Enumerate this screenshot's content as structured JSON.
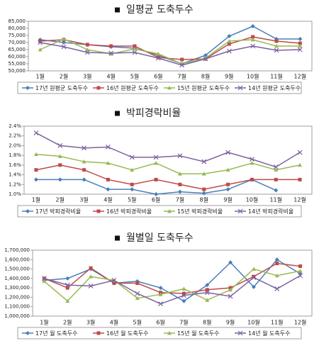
{
  "chart_data": [
    {
      "type": "line",
      "title": "일평균 도축두수",
      "categories": [
        "1월",
        "2월",
        "3월",
        "4월",
        "5월",
        "6월",
        "7월",
        "8월",
        "9월",
        "10월",
        "11월",
        "12월"
      ],
      "ylim": [
        50000,
        85000
      ],
      "yticks": [
        {
          "value": 50000,
          "label": "50,000"
        },
        {
          "value": 55000,
          "label": "55,000"
        },
        {
          "value": 60000,
          "label": "60,000"
        },
        {
          "value": 65000,
          "label": "65,000"
        },
        {
          "value": 70000,
          "label": "70,000"
        },
        {
          "value": 75000,
          "label": "75,000"
        },
        {
          "value": 80000,
          "label": "80,000"
        },
        {
          "value": 85000,
          "label": "85,000"
        }
      ],
      "series": [
        {
          "name": "17년 원평균 도축두수",
          "color": "#4a7ebb",
          "values": [
            72000,
            70000,
            68500,
            67000,
            66000,
            61000,
            55000,
            61000,
            74500,
            81500,
            72500,
            72500
          ]
        },
        {
          "name": "16년 원평균 도축두수",
          "color": "#be4b48",
          "values": [
            71000,
            72000,
            68500,
            67500,
            67500,
            59500,
            58000,
            58500,
            69000,
            74000,
            71000,
            69500
          ]
        },
        {
          "name": "15년 원평균 도축두수",
          "color": "#98b954",
          "values": [
            65000,
            72500,
            65000,
            62000,
            65500,
            62000,
            55000,
            59000,
            71000,
            72000,
            67500,
            67500
          ]
        },
        {
          "name": "14년 원평균 도축두수",
          "color": "#7d60a0",
          "values": [
            70000,
            67000,
            63000,
            62500,
            63000,
            59000,
            54000,
            58500,
            64000,
            67500,
            64500,
            65000
          ]
        }
      ]
    },
    {
      "type": "line",
      "title": "박피경락비율",
      "categories": [
        "1월",
        "2월",
        "3월",
        "4월",
        "5월",
        "6월",
        "7월",
        "8월",
        "9월",
        "10월",
        "11월",
        "12월"
      ],
      "ylim": [
        1.0,
        2.4
      ],
      "yticks": [
        {
          "value": 1.0,
          "label": "1.0%"
        },
        {
          "value": 1.2,
          "label": "1.2%"
        },
        {
          "value": 1.4,
          "label": "1.4%"
        },
        {
          "value": 1.6,
          "label": "1.6%"
        },
        {
          "value": 1.8,
          "label": "1.8%"
        },
        {
          "value": 2.0,
          "label": "2.0%"
        },
        {
          "value": 2.2,
          "label": "2.2%"
        },
        {
          "value": 2.4,
          "label": "2.4%"
        }
      ],
      "series": [
        {
          "name": "17년 박피경락비율",
          "color": "#4a7ebb",
          "values": [
            1.3,
            1.3,
            1.3,
            1.1,
            1.1,
            1.0,
            1.05,
            1.02,
            1.1,
            1.3,
            1.08,
            null
          ]
        },
        {
          "name": "16년 박피경락비율",
          "color": "#be4b48",
          "values": [
            1.5,
            1.6,
            1.5,
            1.3,
            1.2,
            1.3,
            1.2,
            1.1,
            1.2,
            1.3,
            1.3,
            1.3
          ]
        },
        {
          "name": "15년 박피경락비율",
          "color": "#98b954",
          "values": [
            1.82,
            1.78,
            1.67,
            1.64,
            1.5,
            1.64,
            1.42,
            1.42,
            1.5,
            1.64,
            1.5,
            1.6
          ]
        },
        {
          "name": "14년 박피경락비율",
          "color": "#7d60a0",
          "values": [
            2.26,
            2.0,
            1.95,
            1.97,
            1.76,
            1.76,
            1.79,
            1.67,
            1.86,
            1.72,
            1.56,
            1.86
          ]
        }
      ]
    },
    {
      "type": "line",
      "title": "월별일 도축두수",
      "categories": [
        "1월",
        "2월",
        "3월",
        "4월",
        "5월",
        "6월",
        "7월",
        "8월",
        "9월",
        "10월",
        "11월",
        "12월"
      ],
      "ylim": [
        1000000,
        1700000
      ],
      "yticks": [
        {
          "value": 1000000,
          "label": "1,000,000"
        },
        {
          "value": 1100000,
          "label": "1,100,000"
        },
        {
          "value": 1200000,
          "label": "1,200,000"
        },
        {
          "value": 1300000,
          "label": "1,300,000"
        },
        {
          "value": 1400000,
          "label": "1,400,000"
        },
        {
          "value": 1500000,
          "label": "1,500,000"
        },
        {
          "value": 1600000,
          "label": "1,600,000"
        },
        {
          "value": 1700000,
          "label": "1,700,000"
        }
      ],
      "series": [
        {
          "name": "17년 월 도축두수",
          "color": "#4a7ebb",
          "values": [
            1380000,
            1400000,
            1500000,
            1350000,
            1370000,
            1300000,
            1160000,
            1330000,
            1570000,
            1310000,
            1600000,
            1450000
          ]
        },
        {
          "name": "16년 월 도축두수",
          "color": "#be4b48",
          "values": [
            1400000,
            1300000,
            1510000,
            1350000,
            1350000,
            1250000,
            1240000,
            1280000,
            1300000,
            1420000,
            1560000,
            1530000
          ]
        },
        {
          "name": "15년 월 도축두수",
          "color": "#98b954",
          "values": [
            1370000,
            1160000,
            1420000,
            1380000,
            1190000,
            1230000,
            1290000,
            1170000,
            1280000,
            1500000,
            1430000,
            1480000
          ]
        },
        {
          "name": "14년 월 도축두수",
          "color": "#7d60a0",
          "values": [
            1400000,
            1330000,
            1320000,
            1380000,
            1240000,
            1130000,
            1220000,
            1250000,
            1210000,
            1410000,
            1290000,
            1430000
          ]
        }
      ]
    }
  ]
}
